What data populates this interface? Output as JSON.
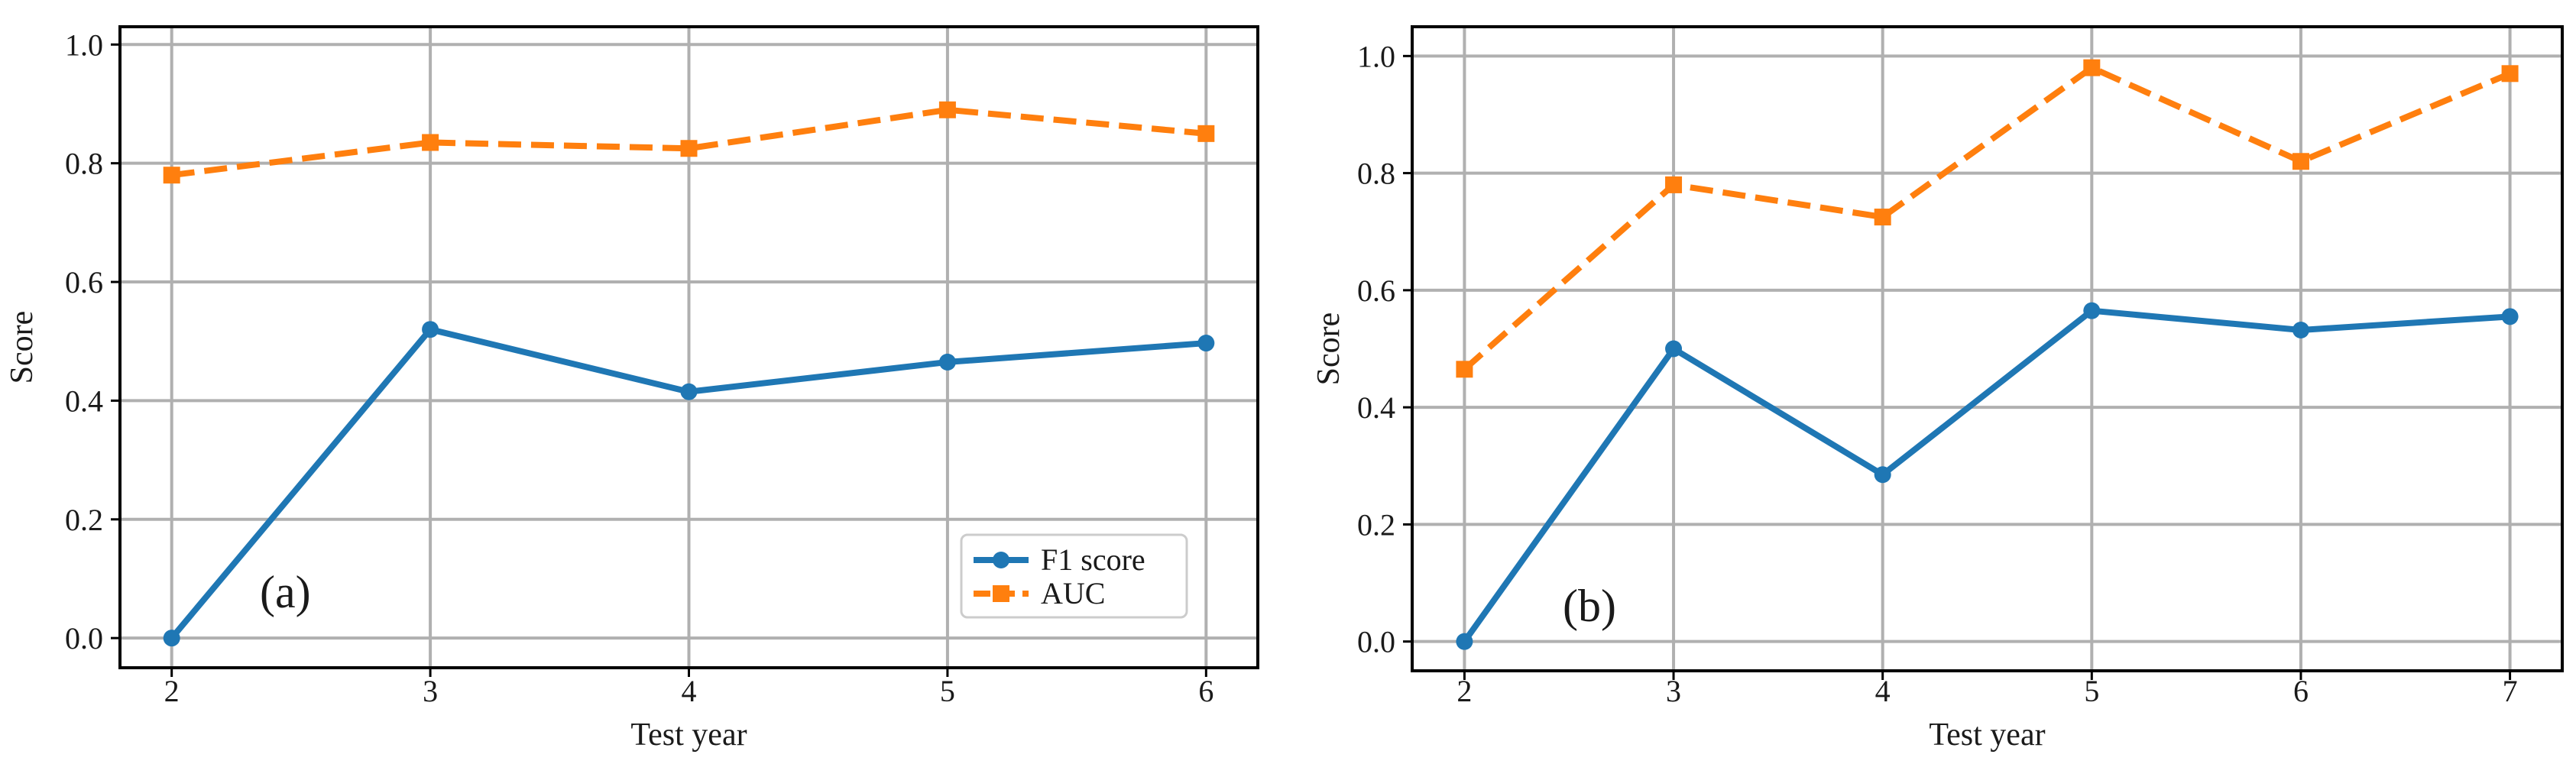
{
  "chart_data": [
    {
      "type": "line",
      "panel_label": "(a)",
      "xlabel": "Test year",
      "ylabel": "Score",
      "x": [
        2,
        3,
        4,
        5,
        6
      ],
      "xlim": [
        1.8,
        6.2
      ],
      "ylim": [
        -0.05,
        1.03
      ],
      "xticks": [
        "2",
        "3",
        "4",
        "5",
        "6"
      ],
      "yticks": [
        "0.0",
        "0.2",
        "0.4",
        "0.6",
        "0.8",
        "1.0"
      ],
      "grid": true,
      "legend": "lower-right",
      "series": [
        {
          "name": "F1 score",
          "values": [
            0.0,
            0.52,
            0.415,
            0.465,
            0.497
          ],
          "color": "#1f77b4",
          "marker": "circle",
          "linestyle": "solid"
        },
        {
          "name": "AUC",
          "values": [
            0.78,
            0.835,
            0.825,
            0.89,
            0.85
          ],
          "color": "#ff7f0e",
          "marker": "square",
          "linestyle": "dashed"
        }
      ]
    },
    {
      "type": "line",
      "panel_label": "(b)",
      "xlabel": "Test year",
      "ylabel": "Score",
      "x": [
        2,
        3,
        4,
        5,
        6,
        7
      ],
      "xlim": [
        1.75,
        7.25
      ],
      "ylim": [
        -0.05,
        1.05
      ],
      "xticks": [
        "2",
        "3",
        "4",
        "5",
        "6",
        "7"
      ],
      "yticks": [
        "0.0",
        "0.2",
        "0.4",
        "0.6",
        "0.8",
        "1.0"
      ],
      "grid": true,
      "legend": "none",
      "series": [
        {
          "name": "F1 score",
          "values": [
            0.0,
            0.5,
            0.285,
            0.565,
            0.532,
            0.555
          ],
          "color": "#1f77b4",
          "marker": "circle",
          "linestyle": "solid"
        },
        {
          "name": "AUC",
          "values": [
            0.465,
            0.78,
            0.725,
            0.98,
            0.82,
            0.97
          ],
          "color": "#ff7f0e",
          "marker": "square",
          "linestyle": "dashed"
        }
      ]
    }
  ]
}
